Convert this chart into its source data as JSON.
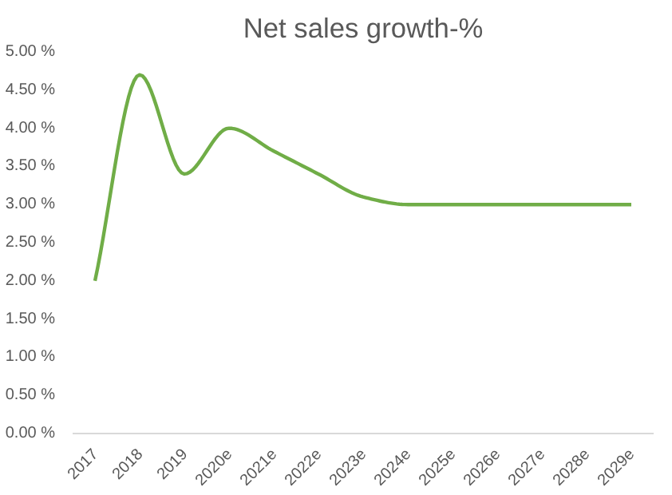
{
  "chart_data": {
    "type": "line",
    "title": "Net sales growth-%",
    "categories": [
      "2017",
      "2018",
      "2019",
      "2020e",
      "2021e",
      "2022e",
      "2023e",
      "2024e",
      "2025e",
      "2026e",
      "2027e",
      "2028e",
      "2029e"
    ],
    "series": [
      {
        "color": "#70ad47",
        "values": [
          2.0,
          4.7,
          3.4,
          4.0,
          3.7,
          3.4,
          3.1,
          3.0,
          3.0,
          3.0,
          3.0,
          3.0,
          3.0
        ]
      }
    ],
    "ylim": [
      0,
      5
    ],
    "yticks": [
      {
        "value": 0,
        "label": "0.00 %"
      },
      {
        "value": 0.5,
        "label": "0.50 %"
      },
      {
        "value": 1,
        "label": "1.00 %"
      },
      {
        "value": 1.5,
        "label": "1.50 %"
      },
      {
        "value": 2,
        "label": "2.00 %"
      },
      {
        "value": 2.5,
        "label": "2.50 %"
      },
      {
        "value": 3,
        "label": "3.00 %"
      },
      {
        "value": 3.5,
        "label": "3.50 %"
      },
      {
        "value": 4,
        "label": "4.00 %"
      },
      {
        "value": 4.5,
        "label": "4.50 %"
      },
      {
        "value": 5,
        "label": "5.00 %"
      }
    ],
    "grid": false,
    "marker": "none",
    "line_style": "solid"
  }
}
